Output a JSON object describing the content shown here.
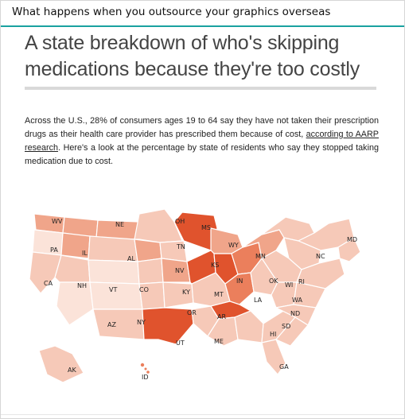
{
  "post": {
    "title": "What happens when you outsource your graphics overseas"
  },
  "article": {
    "headline": "A state breakdown of who's skipping medications because they're too costly",
    "body_before": "Across the U.S., 28% of consumers ages 19 to 64 say they have not taken their prescription drugs as their health care provider has prescribed them because of cost, ",
    "link": "according to AARP research",
    "body_after": ". Here's a look at the percentage by state of residents who say they stopped taking medication due to cost."
  },
  "map": {
    "legend_note": "",
    "colors": {
      "light": "#f6c9b8",
      "pale": "#fbe3d9",
      "mid": "#f0a58a",
      "strong": "#eb7f5c",
      "dark": "#e0532d"
    },
    "labels": [
      "WV",
      "NE",
      "OH",
      "MS",
      "MD",
      "PA",
      "IL",
      "TN",
      "WY",
      "MN",
      "NC",
      "AL",
      "KS",
      "RI",
      "NV",
      "IN",
      "OK",
      "WI",
      "CA",
      "NH",
      "VT",
      "CO",
      "KY",
      "MT",
      "LA",
      "WA",
      "OR",
      "AR",
      "ND",
      "AZ",
      "NY",
      "SD",
      "HI",
      "UT",
      "ME",
      "GA",
      "AK",
      "ID"
    ]
  }
}
